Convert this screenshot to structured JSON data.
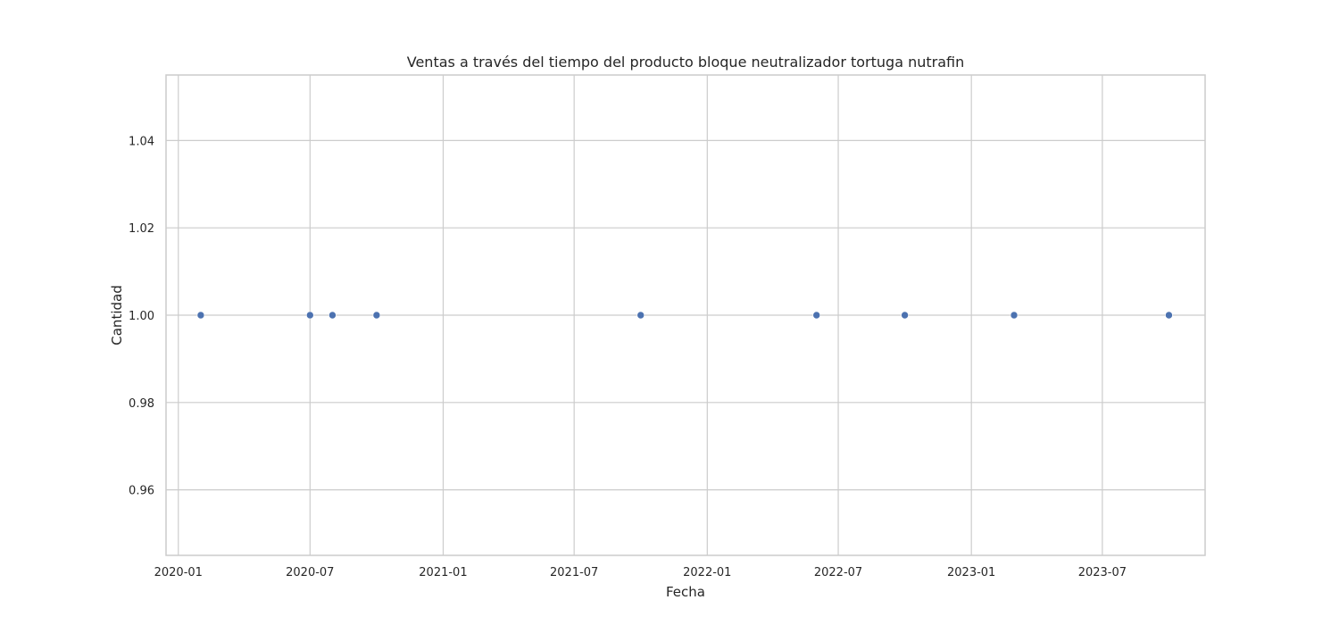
{
  "chart_data": {
    "type": "scatter",
    "title": "Ventas a través del tiempo del producto bloque neutralizador tortuga nutrafin",
    "xlabel": "Fecha",
    "ylabel": "Cantidad",
    "x_axis_type": "date",
    "xlim": [
      "2019-12-15",
      "2023-11-20"
    ],
    "ylim": [
      0.945,
      1.055
    ],
    "x_ticks": [
      "2020-01",
      "2020-07",
      "2021-01",
      "2021-07",
      "2022-01",
      "2022-07",
      "2023-01",
      "2023-07"
    ],
    "y_ticks": [
      0.96,
      0.98,
      1.0,
      1.02,
      1.04
    ],
    "y_tick_labels": [
      "0.96",
      "0.98",
      "1.00",
      "1.02",
      "1.04"
    ],
    "grid": true,
    "marker_color": "#4c72b0",
    "points": [
      {
        "x": "2020-02-01",
        "y": 1
      },
      {
        "x": "2020-07-01",
        "y": 1
      },
      {
        "x": "2020-08-01",
        "y": 1
      },
      {
        "x": "2020-10-01",
        "y": 1
      },
      {
        "x": "2021-10-01",
        "y": 1
      },
      {
        "x": "2022-06-01",
        "y": 1
      },
      {
        "x": "2022-10-01",
        "y": 1
      },
      {
        "x": "2023-03-01",
        "y": 1
      },
      {
        "x": "2023-10-01",
        "y": 1
      }
    ]
  }
}
